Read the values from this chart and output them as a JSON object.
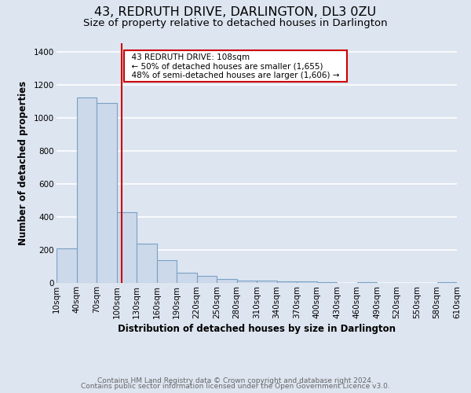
{
  "title": "43, REDRUTH DRIVE, DARLINGTON, DL3 0ZU",
  "subtitle": "Size of property relative to detached houses in Darlington",
  "xlabel": "Distribution of detached houses by size in Darlington",
  "ylabel": "Number of detached properties",
  "footer_lines": [
    "Contains HM Land Registry data © Crown copyright and database right 2024.",
    "Contains public sector information licensed under the Open Government Licence v3.0."
  ],
  "bin_edges": [
    10,
    40,
    70,
    100,
    130,
    160,
    190,
    220,
    250,
    280,
    310,
    340,
    370,
    400,
    430,
    460,
    490,
    520,
    550,
    580,
    610
  ],
  "bin_counts": [
    210,
    1120,
    1090,
    430,
    240,
    140,
    60,
    45,
    25,
    15,
    12,
    10,
    8,
    6,
    0,
    5,
    0,
    0,
    0,
    3
  ],
  "bar_color": "#ccd9ea",
  "bar_edge_color": "#7aa0c4",
  "property_size": 108,
  "vline_color": "#cc0000",
  "annotation_title": "43 REDRUTH DRIVE: 108sqm",
  "annotation_line1": "← 50% of detached houses are smaller (1,655)",
  "annotation_line2": "48% of semi-detached houses are larger (1,606) →",
  "annotation_box_edge_color": "#cc0000",
  "ylim": [
    0,
    1450
  ],
  "background_color": "#dde5f0",
  "plot_background_color": "#dde5f0",
  "grid_color": "#ffffff",
  "title_fontsize": 11.5,
  "subtitle_fontsize": 9.5,
  "axis_label_fontsize": 8.5,
  "tick_fontsize": 7.5,
  "annotation_fontsize": 7.5,
  "footer_fontsize": 6.5
}
